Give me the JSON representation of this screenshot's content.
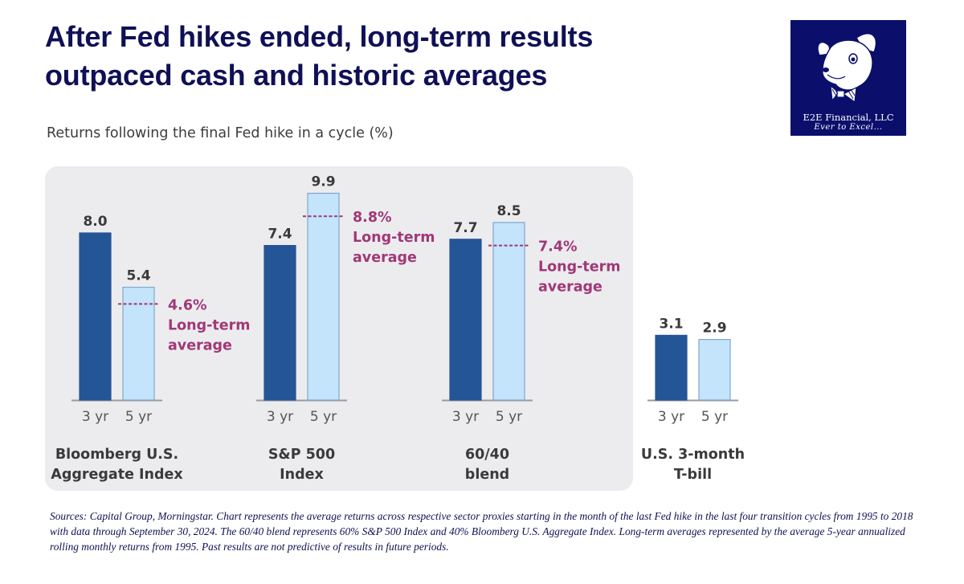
{
  "header": {
    "title_line1": "After Fed hikes ended, long-term results",
    "title_line2": "outpaced cash and historic averages",
    "subtitle": "Returns following the final Fed hike in a cycle (%)"
  },
  "logo": {
    "icon": "dog-with-bowtie-icon",
    "firm_name": "E2E Financial, LLC",
    "tagline": "Ever to Excel..."
  },
  "colors": {
    "title": "#0f1056",
    "bar_3yr": "#245596",
    "bar_5yr": "#c3e4fa",
    "bar_5yr_border": "#7fa6cf",
    "average_line": "#a03878",
    "panel_bg": "#ececee",
    "logo_bg": "#0b0f6b"
  },
  "chart_data": {
    "type": "bar",
    "title": "Returns following the final Fed hike in a cycle (%)",
    "xlabel": "",
    "ylabel": "",
    "ylim": [
      0,
      10
    ],
    "grid": false,
    "subcategories": [
      "3 yr",
      "5 yr"
    ],
    "groups": [
      {
        "label_line1": "Bloomberg U.S.",
        "label_line2": "Aggregate Index",
        "values": [
          8.0,
          5.4
        ],
        "value_labels": [
          "8.0",
          "5.4"
        ],
        "long_term_average": 4.6,
        "average_label_value": "4.6%",
        "average_label_line2": "Long-term",
        "average_label_line3": "average",
        "highlighted": true
      },
      {
        "label_line1": "S&P 500",
        "label_line2": "Index",
        "values": [
          7.4,
          9.9
        ],
        "value_labels": [
          "7.4",
          "9.9"
        ],
        "long_term_average": 8.8,
        "average_label_value": "8.8%",
        "average_label_line2": "Long-term",
        "average_label_line3": "average",
        "highlighted": true
      },
      {
        "label_line1": "60/40",
        "label_line2": "blend",
        "values": [
          7.7,
          8.5
        ],
        "value_labels": [
          "7.7",
          "8.5"
        ],
        "long_term_average": 7.4,
        "average_label_value": "7.4%",
        "average_label_line2": "Long-term",
        "average_label_line3": "average",
        "highlighted": true
      },
      {
        "label_line1": "U.S. 3-month",
        "label_line2": "T-bill",
        "values": [
          3.1,
          2.9
        ],
        "value_labels": [
          "3.1",
          "2.9"
        ],
        "long_term_average": null,
        "highlighted": false
      }
    ]
  },
  "footnote": "Sources: Capital Group, Morningstar. Chart represents the average returns across respective sector proxies starting in the month of the last Fed hike in the last four transition cycles from 1995 to 2018 with data through September 30, 2024. The 60/40 blend represents 60% S&P 500 Index and 40% Bloomberg U.S. Aggregate Index. Long-term averages represented by the average 5-year annualized rolling monthly returns from 1995. Past results are not predictive of results in future periods."
}
